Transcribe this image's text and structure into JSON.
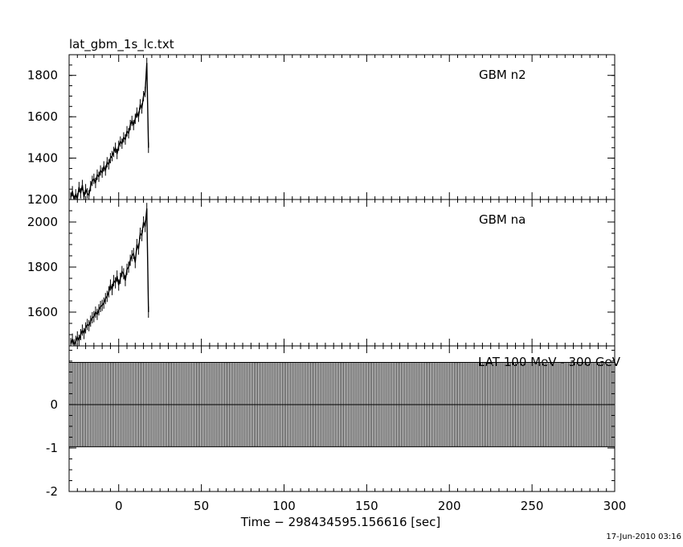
{
  "page_title": "lat_gbm_1s_lc.txt",
  "timestamp": "17-Jun-2010 03:16",
  "chart_data": [
    {
      "type": "line",
      "panel": "top",
      "label": "GBM n2",
      "xlim": [
        -30,
        300
      ],
      "ylim": [
        1200,
        1900
      ],
      "yticks": [
        1200,
        1400,
        1600,
        1800
      ],
      "series": [
        {
          "x": [
            -29,
            -28,
            -27,
            -26,
            -25,
            -24,
            -23,
            -22,
            -21,
            -20,
            -19,
            -18,
            -17,
            -16,
            -15,
            -14,
            -13,
            -12,
            -11,
            -10,
            -9,
            -8,
            -7,
            -6,
            -5,
            -4,
            -3,
            -2,
            -1,
            0,
            1,
            2,
            3,
            4,
            5,
            6,
            7,
            8,
            9,
            10,
            11,
            12,
            13,
            14,
            15,
            16,
            17,
            18
          ],
          "values": [
            1210,
            1240,
            1195,
            1225,
            1205,
            1260,
            1230,
            1270,
            1210,
            1250,
            1230,
            1220,
            1265,
            1290,
            1300,
            1280,
            1320,
            1310,
            1340,
            1330,
            1360,
            1340,
            1380,
            1370,
            1400,
            1410,
            1430,
            1450,
            1420,
            1460,
            1480,
            1470,
            1500,
            1490,
            1530,
            1520,
            1560,
            1580,
            1560,
            1590,
            1620,
            1600,
            1660,
            1640,
            1700,
            1720,
            1860,
            1450
          ]
        }
      ]
    },
    {
      "type": "line",
      "panel": "middle",
      "label": "GBM na",
      "xlim": [
        -30,
        300
      ],
      "ylim": [
        1450,
        2100
      ],
      "yticks": [
        1600,
        1800,
        2000
      ],
      "series": [
        {
          "x": [
            -29,
            -28,
            -27,
            -26,
            -25,
            -24,
            -23,
            -22,
            -21,
            -20,
            -19,
            -18,
            -17,
            -16,
            -15,
            -14,
            -13,
            -12,
            -11,
            -10,
            -9,
            -8,
            -7,
            -6,
            -5,
            -4,
            -3,
            -2,
            -1,
            0,
            1,
            2,
            3,
            4,
            5,
            6,
            7,
            8,
            9,
            10,
            11,
            12,
            13,
            14,
            15,
            16,
            17,
            18
          ],
          "values": [
            1460,
            1480,
            1455,
            1470,
            1490,
            1475,
            1500,
            1520,
            1505,
            1530,
            1545,
            1540,
            1560,
            1575,
            1580,
            1600,
            1590,
            1610,
            1625,
            1630,
            1640,
            1660,
            1670,
            1690,
            1720,
            1700,
            1740,
            1730,
            1760,
            1720,
            1750,
            1780,
            1770,
            1740,
            1790,
            1800,
            1830,
            1850,
            1860,
            1820,
            1900,
            1880,
            1950,
            1940,
            2000,
            1980,
            2060,
            1600
          ]
        }
      ]
    },
    {
      "type": "bar",
      "panel": "bottom",
      "label": "LAT 100 MeV - 300 GeV",
      "xlim": [
        -30,
        300
      ],
      "ylim": [
        -2,
        1.35
      ],
      "yticks": [
        -2,
        -1,
        0
      ],
      "fill_range": [
        -0.97,
        0.97
      ],
      "x_start": -30,
      "x_end": 300,
      "x_step": 1
    }
  ],
  "x_axis": {
    "label": "Time − 298434595.156616 [sec]",
    "ticks": [
      0,
      50,
      100,
      150,
      200,
      250,
      300
    ]
  }
}
